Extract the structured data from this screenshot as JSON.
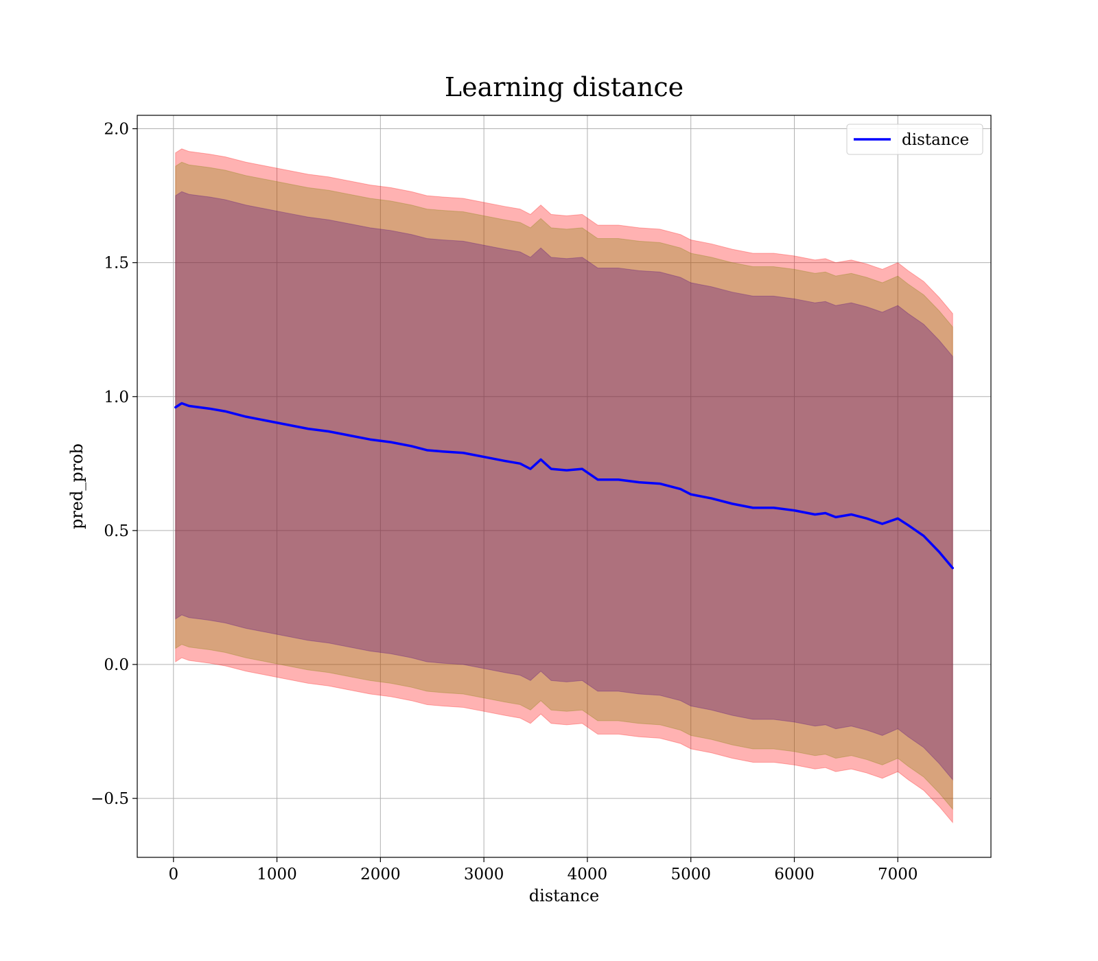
{
  "chart_data": {
    "type": "line",
    "title": "Learning distance",
    "xlabel": "distance",
    "ylabel": "pred_prob",
    "xlim": [
      -350,
      7900
    ],
    "ylim": [
      -0.72,
      2.05
    ],
    "x_ticks": [
      0,
      1000,
      2000,
      3000,
      4000,
      5000,
      6000,
      7000
    ],
    "x_tick_labels": [
      "0",
      "1000",
      "2000",
      "3000",
      "4000",
      "5000",
      "6000",
      "7000"
    ],
    "y_ticks": [
      -0.5,
      0.0,
      0.5,
      1.0,
      1.5,
      2.0
    ],
    "y_tick_labels": [
      "−0.5",
      "0.0",
      "0.5",
      "1.0",
      "1.5",
      "2.0"
    ],
    "grid": true,
    "legend_position": "top-right",
    "series": [
      {
        "name": "distance",
        "color": "#0000ff",
        "x": [
          20,
          80,
          150,
          250,
          350,
          500,
          700,
          900,
          1100,
          1300,
          1500,
          1700,
          1900,
          2100,
          2300,
          2450,
          2600,
          2800,
          3000,
          3200,
          3350,
          3450,
          3550,
          3650,
          3800,
          3950,
          4100,
          4300,
          4500,
          4700,
          4900,
          5000,
          5200,
          5400,
          5600,
          5800,
          6000,
          6200,
          6300,
          6400,
          6550,
          6700,
          6850,
          7000,
          7100,
          7250,
          7400,
          7530
        ],
        "y": [
          0.96,
          0.975,
          0.965,
          0.96,
          0.955,
          0.945,
          0.925,
          0.91,
          0.895,
          0.88,
          0.87,
          0.855,
          0.84,
          0.83,
          0.815,
          0.8,
          0.795,
          0.79,
          0.775,
          0.76,
          0.75,
          0.73,
          0.765,
          0.73,
          0.725,
          0.73,
          0.69,
          0.69,
          0.68,
          0.675,
          0.655,
          0.635,
          0.62,
          0.6,
          0.585,
          0.585,
          0.575,
          0.56,
          0.565,
          0.55,
          0.56,
          0.545,
          0.525,
          0.545,
          0.52,
          0.48,
          0.42,
          0.36
        ]
      }
    ],
    "bands": [
      {
        "color": "#ff0000",
        "opacity": 0.3,
        "x": [
          20,
          80,
          150,
          250,
          350,
          500,
          700,
          900,
          1100,
          1300,
          1500,
          1700,
          1900,
          2100,
          2300,
          2450,
          2600,
          2800,
          3000,
          3200,
          3350,
          3450,
          3550,
          3650,
          3800,
          3950,
          4100,
          4300,
          4500,
          4700,
          4900,
          5000,
          5200,
          5400,
          5600,
          5800,
          6000,
          6200,
          6300,
          6400,
          6550,
          6700,
          6850,
          7000,
          7100,
          7250,
          7400,
          7530
        ],
        "upper": [
          1.91,
          1.925,
          1.915,
          1.91,
          1.905,
          1.895,
          1.875,
          1.86,
          1.845,
          1.83,
          1.82,
          1.805,
          1.79,
          1.78,
          1.765,
          1.75,
          1.745,
          1.74,
          1.725,
          1.71,
          1.7,
          1.68,
          1.715,
          1.68,
          1.675,
          1.68,
          1.64,
          1.64,
          1.63,
          1.625,
          1.605,
          1.585,
          1.57,
          1.55,
          1.535,
          1.535,
          1.525,
          1.51,
          1.515,
          1.5,
          1.51,
          1.495,
          1.475,
          1.5,
          1.47,
          1.43,
          1.37,
          1.31
        ],
        "lower": [
          0.01,
          0.025,
          0.015,
          0.01,
          0.005,
          -0.005,
          -0.025,
          -0.04,
          -0.055,
          -0.07,
          -0.08,
          -0.095,
          -0.11,
          -0.12,
          -0.135,
          -0.15,
          -0.155,
          -0.16,
          -0.175,
          -0.19,
          -0.2,
          -0.22,
          -0.185,
          -0.22,
          -0.225,
          -0.22,
          -0.26,
          -0.26,
          -0.27,
          -0.275,
          -0.295,
          -0.315,
          -0.33,
          -0.35,
          -0.365,
          -0.365,
          -0.375,
          -0.39,
          -0.385,
          -0.4,
          -0.39,
          -0.405,
          -0.425,
          -0.4,
          -0.43,
          -0.47,
          -0.53,
          -0.59
        ]
      },
      {
        "color": "#7f8000",
        "opacity": 0.3,
        "x": [
          20,
          80,
          150,
          250,
          350,
          500,
          700,
          900,
          1100,
          1300,
          1500,
          1700,
          1900,
          2100,
          2300,
          2450,
          2600,
          2800,
          3000,
          3200,
          3350,
          3450,
          3550,
          3650,
          3800,
          3950,
          4100,
          4300,
          4500,
          4700,
          4900,
          5000,
          5200,
          5400,
          5600,
          5800,
          6000,
          6200,
          6300,
          6400,
          6550,
          6700,
          6850,
          7000,
          7100,
          7250,
          7400,
          7530
        ],
        "upper": [
          1.86,
          1.875,
          1.865,
          1.86,
          1.855,
          1.845,
          1.825,
          1.81,
          1.795,
          1.78,
          1.77,
          1.755,
          1.74,
          1.73,
          1.715,
          1.7,
          1.695,
          1.69,
          1.675,
          1.66,
          1.65,
          1.63,
          1.665,
          1.63,
          1.625,
          1.63,
          1.59,
          1.59,
          1.58,
          1.575,
          1.555,
          1.535,
          1.52,
          1.5,
          1.485,
          1.485,
          1.475,
          1.46,
          1.465,
          1.45,
          1.46,
          1.445,
          1.425,
          1.45,
          1.42,
          1.38,
          1.32,
          1.26
        ],
        "lower": [
          0.06,
          0.075,
          0.065,
          0.06,
          0.055,
          0.045,
          0.025,
          0.01,
          -0.005,
          -0.02,
          -0.03,
          -0.045,
          -0.06,
          -0.07,
          -0.085,
          -0.1,
          -0.105,
          -0.11,
          -0.125,
          -0.14,
          -0.15,
          -0.17,
          -0.135,
          -0.17,
          -0.175,
          -0.17,
          -0.21,
          -0.21,
          -0.22,
          -0.225,
          -0.245,
          -0.265,
          -0.28,
          -0.3,
          -0.315,
          -0.315,
          -0.325,
          -0.34,
          -0.335,
          -0.35,
          -0.34,
          -0.355,
          -0.375,
          -0.35,
          -0.38,
          -0.42,
          -0.48,
          -0.54
        ]
      },
      {
        "color": "#4b0082",
        "opacity": 0.3,
        "x": [
          20,
          80,
          150,
          250,
          350,
          500,
          700,
          900,
          1100,
          1300,
          1500,
          1700,
          1900,
          2100,
          2300,
          2450,
          2600,
          2800,
          3000,
          3200,
          3350,
          3450,
          3550,
          3650,
          3800,
          3950,
          4100,
          4300,
          4500,
          4700,
          4900,
          5000,
          5200,
          5400,
          5600,
          5800,
          6000,
          6200,
          6300,
          6400,
          6550,
          6700,
          6850,
          7000,
          7100,
          7250,
          7400,
          7530
        ],
        "upper": [
          1.75,
          1.765,
          1.755,
          1.75,
          1.745,
          1.735,
          1.715,
          1.7,
          1.685,
          1.67,
          1.66,
          1.645,
          1.63,
          1.62,
          1.605,
          1.59,
          1.585,
          1.58,
          1.565,
          1.55,
          1.54,
          1.52,
          1.555,
          1.52,
          1.515,
          1.52,
          1.48,
          1.48,
          1.47,
          1.465,
          1.445,
          1.425,
          1.41,
          1.39,
          1.375,
          1.375,
          1.365,
          1.35,
          1.355,
          1.34,
          1.35,
          1.335,
          1.315,
          1.34,
          1.31,
          1.27,
          1.21,
          1.15
        ],
        "lower": [
          0.17,
          0.185,
          0.175,
          0.17,
          0.165,
          0.155,
          0.135,
          0.12,
          0.105,
          0.09,
          0.08,
          0.065,
          0.05,
          0.04,
          0.025,
          0.01,
          0.005,
          0.0,
          -0.015,
          -0.03,
          -0.04,
          -0.06,
          -0.025,
          -0.06,
          -0.065,
          -0.06,
          -0.1,
          -0.1,
          -0.11,
          -0.115,
          -0.135,
          -0.155,
          -0.17,
          -0.19,
          -0.205,
          -0.205,
          -0.215,
          -0.23,
          -0.225,
          -0.24,
          -0.23,
          -0.245,
          -0.265,
          -0.24,
          -0.27,
          -0.31,
          -0.37,
          -0.43
        ]
      }
    ]
  }
}
